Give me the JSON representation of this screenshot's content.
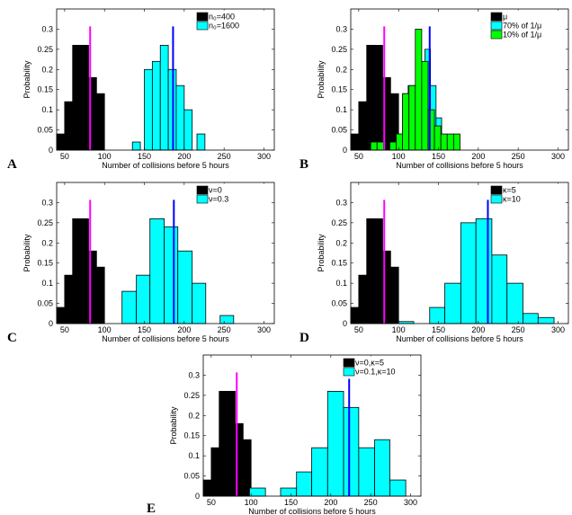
{
  "chart_data": [
    {
      "type": "histogram",
      "panel_label": "A",
      "xlabel": "Number of collisions before 5 hours",
      "ylabel": "Probability",
      "xlim": [
        40,
        313
      ],
      "ylim": [
        0,
        0.35
      ],
      "xticks": [
        50,
        100,
        150,
        200,
        250,
        300
      ],
      "yticks": [
        0,
        0.05,
        0.1,
        0.15,
        0.2,
        0.25,
        0.3
      ],
      "series": [
        {
          "name": "n₀=400",
          "color": "#000000",
          "bins": [
            40,
            50,
            60,
            70,
            80,
            90,
            100
          ],
          "values": [
            0.04,
            0.12,
            0.26,
            0.26,
            0.18,
            0.14
          ]
        },
        {
          "name": "n₀=1600",
          "color": "#00ffff",
          "bins": [
            135,
            145,
            150,
            160,
            170,
            180,
            190,
            200,
            210,
            216,
            226
          ],
          "values": [
            0.02,
            0,
            0.2,
            0.22,
            0.26,
            0.2,
            0.16,
            0.1,
            0,
            0.04
          ]
        }
      ],
      "mean_lines": [
        {
          "color": "#ff00ff",
          "value": 82
        },
        {
          "color": "#0000ff",
          "value": 186
        }
      ]
    },
    {
      "type": "histogram",
      "panel_label": "B",
      "xlabel": "Number of collisions before 5 hours",
      "ylabel": "Probability",
      "xlim": [
        40,
        313
      ],
      "ylim": [
        0,
        0.35
      ],
      "xticks": [
        50,
        100,
        150,
        200,
        250,
        300
      ],
      "yticks": [
        0,
        0.05,
        0.1,
        0.15,
        0.2,
        0.25,
        0.3
      ],
      "series": [
        {
          "name": "μ",
          "color": "#000000",
          "bins": [
            40,
            50,
            60,
            70,
            80,
            90,
            100
          ],
          "values": [
            0.04,
            0.12,
            0.26,
            0.26,
            0.18,
            0.14
          ]
        },
        {
          "name": "70% of 1/μ",
          "color": "#00ffff",
          "bins": [
            105,
            112,
            119,
            126,
            133,
            140,
            147,
            154
          ],
          "values": [
            0.14,
            0.16,
            0.16,
            0.2,
            0.25,
            0.16,
            0.08
          ]
        },
        {
          "name": "10% of 1/μ",
          "color": "#00ff00",
          "bins": [
            65,
            73,
            81,
            89,
            97,
            105,
            113,
            121,
            129,
            137,
            145,
            153,
            161,
            169,
            177
          ],
          "values": [
            0.02,
            0.02,
            0,
            0.02,
            0.04,
            0.14,
            0.16,
            0.3,
            0.22,
            0.1,
            0.06,
            0.04,
            0.04,
            0.04
          ]
        }
      ],
      "mean_lines": [
        {
          "color": "#ff00ff",
          "value": 82
        },
        {
          "color": "#0000ff",
          "value": 139
        }
      ]
    },
    {
      "type": "histogram",
      "panel_label": "C",
      "xlabel": "Number of collisions before 5 hours",
      "ylabel": "Probability",
      "xlim": [
        40,
        313
      ],
      "ylim": [
        0,
        0.35
      ],
      "xticks": [
        50,
        100,
        150,
        200,
        250,
        300
      ],
      "yticks": [
        0,
        0.05,
        0.1,
        0.15,
        0.2,
        0.25,
        0.3
      ],
      "series": [
        {
          "name": "ν=0",
          "color": "#000000",
          "bins": [
            40,
            50,
            60,
            70,
            80,
            90,
            100
          ],
          "values": [
            0.04,
            0.12,
            0.26,
            0.26,
            0.18,
            0.14
          ]
        },
        {
          "name": "ν=0.3",
          "color": "#00ffff",
          "bins": [
            122,
            140,
            157,
            175,
            192,
            210,
            227,
            245,
            262
          ],
          "values": [
            0.08,
            0.12,
            0.26,
            0.24,
            0.18,
            0.1,
            0,
            0.02
          ]
        }
      ],
      "mean_lines": [
        {
          "color": "#ff00ff",
          "value": 82
        },
        {
          "color": "#0000ff",
          "value": 187
        }
      ]
    },
    {
      "type": "histogram",
      "panel_label": "D",
      "xlabel": "Number of collisions before 5 hours",
      "ylabel": "Probability",
      "xlim": [
        40,
        313
      ],
      "ylim": [
        0,
        0.35
      ],
      "xticks": [
        50,
        100,
        150,
        200,
        250,
        300
      ],
      "yticks": [
        0,
        0.05,
        0.1,
        0.15,
        0.2,
        0.25,
        0.3
      ],
      "series": [
        {
          "name": "κ=5",
          "color": "#000000",
          "bins": [
            40,
            50,
            60,
            70,
            80,
            90,
            100
          ],
          "values": [
            0.04,
            0.12,
            0.26,
            0.26,
            0.18,
            0.14
          ]
        },
        {
          "name": "κ=10",
          "color": "#00ffff",
          "bins": [
            100,
            119,
            139,
            158,
            178,
            197,
            217,
            236,
            256,
            275,
            295
          ],
          "values": [
            0.005,
            0,
            0.04,
            0.1,
            0.25,
            0.26,
            0.17,
            0.1,
            0.025,
            0.015
          ]
        }
      ],
      "mean_lines": [
        {
          "color": "#ff00ff",
          "value": 82
        },
        {
          "color": "#0000ff",
          "value": 212
        }
      ]
    },
    {
      "type": "histogram",
      "panel_label": "E",
      "xlabel": "Number of collisions before 5 hours",
      "ylabel": "Probability",
      "xlim": [
        40,
        313
      ],
      "ylim": [
        0,
        0.35
      ],
      "xticks": [
        50,
        100,
        150,
        200,
        250,
        300
      ],
      "yticks": [
        0,
        0.05,
        0.1,
        0.15,
        0.2,
        0.25,
        0.3
      ],
      "series": [
        {
          "name": "ν=0,κ=5",
          "color": "#000000",
          "bins": [
            40,
            50,
            60,
            70,
            80,
            90,
            100
          ],
          "values": [
            0.04,
            0.12,
            0.26,
            0.26,
            0.18,
            0.14
          ]
        },
        {
          "name": "ν=0.1,κ=10",
          "color": "#00ffff",
          "bins": [
            98,
            118,
            137,
            157,
            176,
            196,
            216,
            235,
            255,
            274,
            294
          ],
          "values": [
            0.02,
            0,
            0.02,
            0.06,
            0.12,
            0.26,
            0.22,
            0.12,
            0.14,
            0.04
          ]
        }
      ],
      "mean_lines": [
        {
          "color": "#ff00ff",
          "value": 82
        },
        {
          "color": "#0000ff",
          "value": 223
        }
      ]
    }
  ]
}
